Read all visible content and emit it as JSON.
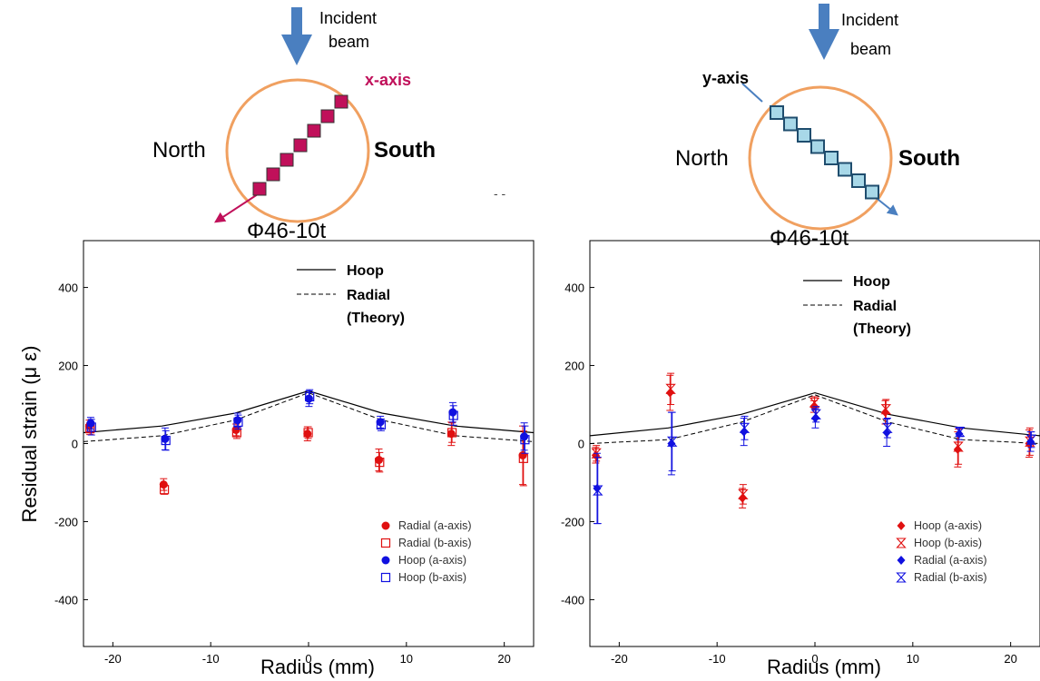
{
  "colors": {
    "orange": "#f0a060",
    "magenta": "#c0105a",
    "steel_blue": "#4a7fc0",
    "light_blue": "#a8d8e8",
    "dark_navy": "#1f4d6e",
    "red": "#e01010",
    "blue": "#1010e0"
  },
  "left_schematic": {
    "incident_line1": "Incident",
    "incident_line2": "beam",
    "axis_label": "x-axis",
    "north": "North",
    "south": "South",
    "specimen": "Φ46-10t"
  },
  "right_schematic": {
    "incident_line1": "Incident",
    "incident_line2": "beam",
    "axis_label": "y-axis",
    "north": "North",
    "south": "South",
    "specimen": "Φ46-10t"
  },
  "shared_ylabel": "Residual strain (μ ε)",
  "chart_data": [
    {
      "type": "scatter",
      "xlabel": "Radius (mm)",
      "xlim": [
        -23,
        23
      ],
      "ylim": [
        -520,
        520
      ],
      "xticks": [
        -20,
        -10,
        0,
        10,
        20
      ],
      "yticks": [
        -400,
        -200,
        0,
        200,
        400
      ],
      "grid": false,
      "legend_position": "top-right / bottom-right",
      "theory_legend": {
        "solid": "Hoop",
        "dashed": "Radial",
        "dashed_note": "(Theory)"
      },
      "theory": {
        "x": [
          -23,
          -15,
          -7.5,
          0,
          7.5,
          15,
          23
        ],
        "hoop": [
          28,
          45,
          78,
          135,
          78,
          45,
          28
        ],
        "radial": [
          5,
          20,
          60,
          130,
          60,
          20,
          5
        ]
      },
      "series": [
        {
          "name": "Radial (a-axis)",
          "marker": "filled-circle",
          "color": "red",
          "points": [
            [
              -22.3,
              45,
              15
            ],
            [
              -14.7,
              -105,
              15
            ],
            [
              -7.3,
              35,
              15
            ],
            [
              0,
              25,
              18
            ],
            [
              7.3,
              -42,
              28
            ],
            [
              14.7,
              25,
              30
            ],
            [
              22,
              -30,
              75
            ]
          ]
        },
        {
          "name": "Radial (b-axis)",
          "marker": "open-square",
          "color": "red",
          "points": [
            [
              -22.3,
              38,
              15
            ],
            [
              -14.7,
              -118,
              12
            ],
            [
              -7.3,
              28,
              15
            ],
            [
              0,
              28,
              15
            ],
            [
              7.3,
              -48,
              25
            ],
            [
              14.7,
              28,
              25
            ],
            [
              22,
              -38,
              70
            ]
          ]
        },
        {
          "name": "Hoop (a-axis)",
          "marker": "filled-circle",
          "color": "blue",
          "points": [
            [
              -22.3,
              52,
              15
            ],
            [
              -14.7,
              12,
              28
            ],
            [
              -7.3,
              60,
              18
            ],
            [
              0,
              115,
              20
            ],
            [
              7.3,
              55,
              15
            ],
            [
              14.7,
              80,
              25
            ],
            [
              22,
              18,
              35
            ]
          ]
        },
        {
          "name": "Hoop (b-axis)",
          "marker": "open-square",
          "color": "blue",
          "points": [
            [
              -22.3,
              42,
              20
            ],
            [
              -14.7,
              8,
              25
            ],
            [
              -7.3,
              55,
              18
            ],
            [
              0,
              120,
              18
            ],
            [
              7.3,
              48,
              15
            ],
            [
              14.7,
              72,
              25
            ],
            [
              22,
              10,
              35
            ]
          ]
        }
      ]
    },
    {
      "type": "scatter",
      "xlabel": "Radius (mm)",
      "xlim": [
        -23,
        23
      ],
      "ylim": [
        -520,
        520
      ],
      "xticks": [
        -20,
        -10,
        0,
        10,
        20
      ],
      "yticks": [
        -400,
        -200,
        0,
        200,
        400
      ],
      "grid": false,
      "legend_position": "top-right / bottom-right",
      "theory_legend": {
        "solid": "Hoop",
        "dashed": "Radial",
        "dashed_note": "(Theory)"
      },
      "theory": {
        "x": [
          -23,
          -15,
          -7.5,
          0,
          7.5,
          15,
          23
        ],
        "hoop": [
          20,
          40,
          75,
          130,
          75,
          40,
          20
        ],
        "radial": [
          0,
          10,
          55,
          125,
          55,
          10,
          0
        ]
      },
      "series": [
        {
          "name": "Hoop (a-axis)",
          "marker": "filled-diamond",
          "color": "red",
          "points": [
            [
              -22.3,
              -30,
              20
            ],
            [
              -14.7,
              130,
              45
            ],
            [
              -7.3,
              -140,
              25
            ],
            [
              0,
              95,
              15
            ],
            [
              7.3,
              80,
              30
            ],
            [
              14.7,
              -15,
              45
            ],
            [
              22,
              0,
              35
            ]
          ]
        },
        {
          "name": "Hoop (b-axis)",
          "marker": "hourglass",
          "color": "red",
          "points": [
            [
              -22.3,
              -25,
              20
            ],
            [
              -14.7,
              140,
              40
            ],
            [
              -7.3,
              -130,
              25
            ],
            [
              0,
              105,
              15
            ],
            [
              7.3,
              88,
              25
            ],
            [
              14.7,
              -8,
              45
            ],
            [
              22,
              5,
              35
            ]
          ]
        },
        {
          "name": "Radial (a-axis)",
          "marker": "filled-diamond",
          "color": "blue",
          "points": [
            [
              -22.3,
              -115,
              90
            ],
            [
              -14.7,
              0,
              80
            ],
            [
              -7.3,
              30,
              35
            ],
            [
              0,
              65,
              25
            ],
            [
              7.3,
              28,
              35
            ],
            [
              14.7,
              25,
              15
            ],
            [
              22,
              5,
              25
            ]
          ]
        },
        {
          "name": "Radial (b-axis)",
          "marker": "hourglass",
          "color": "blue",
          "points": [
            [
              -22.3,
              -120,
              85
            ],
            [
              -14.7,
              5,
              75
            ],
            [
              -7.3,
              40,
              30
            ],
            [
              0,
              75,
              20
            ],
            [
              7.3,
              40,
              25
            ],
            [
              14.7,
              30,
              12
            ],
            [
              22,
              10,
              20
            ]
          ]
        }
      ]
    }
  ]
}
